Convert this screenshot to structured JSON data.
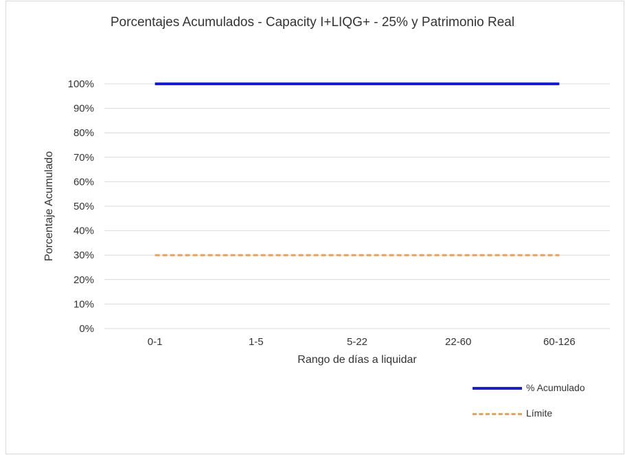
{
  "chart_data": {
    "type": "line",
    "title": "Porcentajes Acumulados - Capacity I+LIQG+ - 25% y Patrimonio Real",
    "xlabel": "Rango de días a liquidar",
    "ylabel": "Porcentaje Acumulado",
    "categories": [
      "0-1",
      "1-5",
      "5-22",
      "22-60",
      "60-126"
    ],
    "ylim": [
      0,
      100
    ],
    "yticks": [
      0,
      10,
      20,
      30,
      40,
      50,
      60,
      70,
      80,
      90,
      100
    ],
    "ytick_labels": [
      "0%",
      "10%",
      "20%",
      "30%",
      "40%",
      "50%",
      "60%",
      "70%",
      "80%",
      "90%",
      "100%"
    ],
    "grid": true,
    "legend_position": "bottom-right",
    "series": [
      {
        "name": "% Acumulado",
        "values": [
          100,
          100,
          100,
          100,
          100
        ],
        "color": "#1a1ae6",
        "style": "solid"
      },
      {
        "name": "Límite",
        "values": [
          30,
          30,
          30,
          30,
          30
        ],
        "color": "#f0a050",
        "style": "dashed"
      }
    ]
  }
}
